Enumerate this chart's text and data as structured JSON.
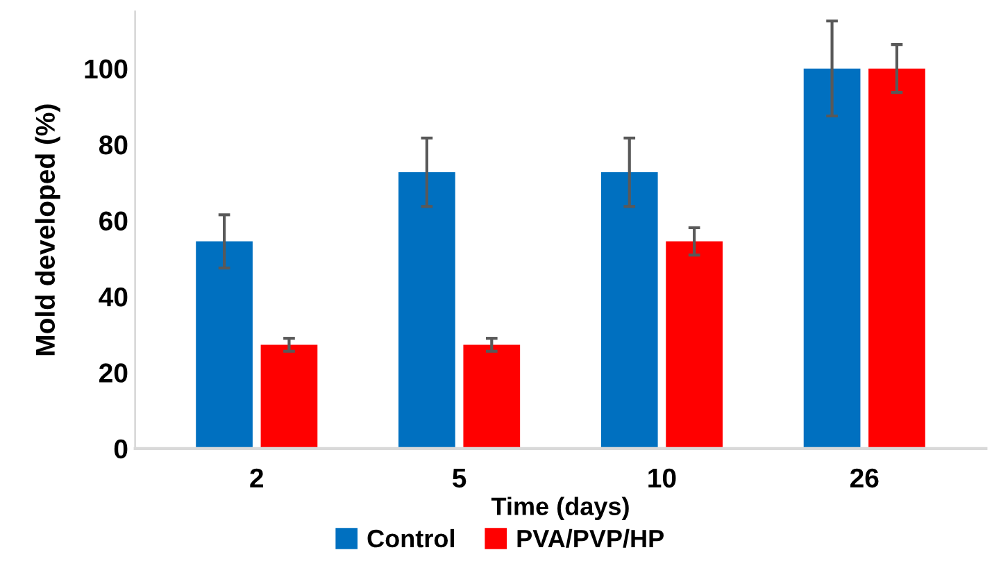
{
  "chart_data": {
    "type": "bar",
    "xlabel": "Time (days)",
    "ylabel": "Mold developed (%)",
    "categories": [
      "2",
      "5",
      "10",
      "26"
    ],
    "series": [
      {
        "name": "Control",
        "color": "#0070c0",
        "values": [
          54.5,
          72.7,
          72.7,
          100
        ],
        "errors": [
          7,
          9,
          9,
          12.5
        ]
      },
      {
        "name": "PVA/PVP/HP",
        "color": "#ff0000",
        "values": [
          27.3,
          27.3,
          54.5,
          100
        ],
        "errors": [
          1.7,
          1.7,
          3.6,
          6.3
        ]
      }
    ],
    "ylim": [
      0,
      115
    ],
    "yticks": [
      0,
      20,
      40,
      60,
      80,
      100
    ],
    "grid": false,
    "legend": "bottom"
  }
}
